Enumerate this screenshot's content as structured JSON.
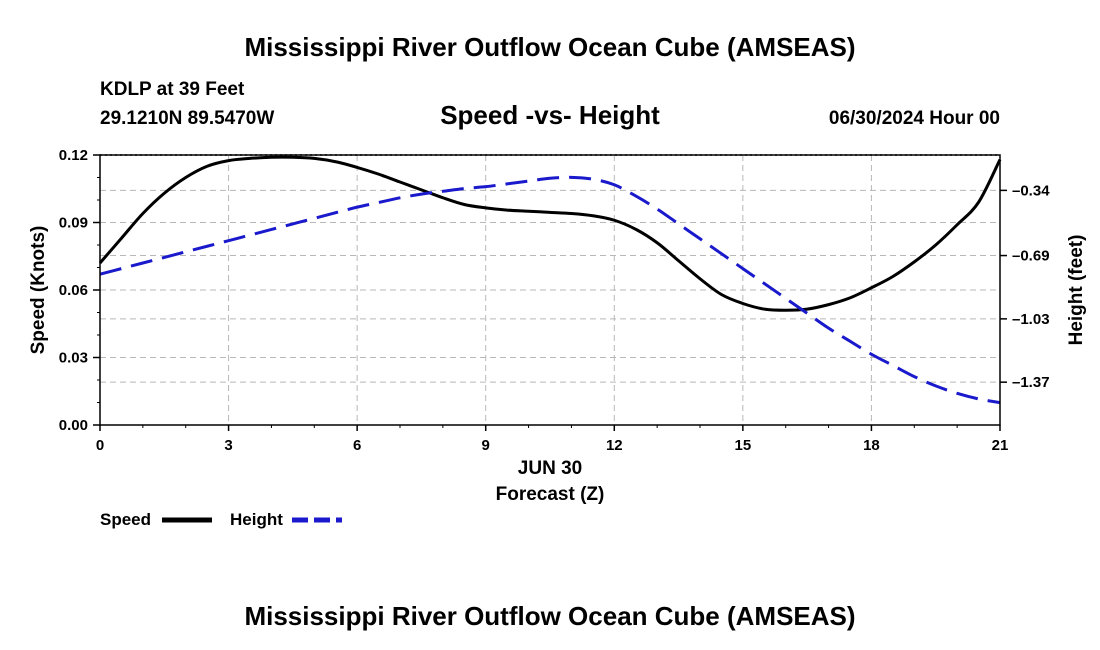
{
  "header": {
    "title": "Mississippi River Outflow Ocean Cube (AMSEAS)",
    "station": "KDLP at 39 Feet",
    "coords": "29.1210N  89.5470W",
    "date": "06/30/2024 Hour 00",
    "footer_title": "Mississippi River Outflow Ocean Cube (AMSEAS)"
  },
  "chart_data": {
    "type": "line",
    "title": "Speed -vs- Height",
    "xlabel": "Forecast (Z)",
    "xlabel_date": "JUN 30",
    "ylabel_left": "Speed (Knots)",
    "ylabel_right": "Height (feet)",
    "xlim": [
      0,
      21
    ],
    "ylim_left": [
      0,
      0.12
    ],
    "ylim_right": [
      -1.6,
      -0.15
    ],
    "x_ticks": [
      0,
      3,
      6,
      9,
      12,
      15,
      18,
      21
    ],
    "x_tick_labels": [
      "0",
      "3",
      "6",
      "9",
      "12",
      "15",
      "18",
      "21"
    ],
    "y_left_ticks": [
      0,
      0.03,
      0.06,
      0.09,
      0.12
    ],
    "y_left_tick_labels": [
      "0.00",
      "0.03",
      "0.06",
      "0.09",
      "0.12"
    ],
    "y_right_ticks": [
      -0.34,
      -0.69,
      -1.03,
      -1.37
    ],
    "y_right_tick_labels": [
      "–0.34",
      "–0.69",
      "–1.03",
      "–1.37"
    ],
    "grid": true,
    "series": [
      {
        "name": "Speed",
        "axis": "left",
        "color": "#000000",
        "dash": "solid",
        "x": [
          0,
          0.5,
          1,
          1.5,
          2,
          2.5,
          3,
          3.5,
          4,
          4.5,
          5,
          5.5,
          6,
          6.5,
          7,
          7.5,
          8,
          8.5,
          9,
          9.5,
          10,
          10.5,
          11,
          11.5,
          12,
          12.5,
          13,
          13.5,
          14,
          14.5,
          15,
          15.5,
          16,
          16.5,
          17,
          17.5,
          18,
          18.5,
          19,
          19.5,
          20,
          20.5,
          21
        ],
        "values": [
          0.072,
          0.083,
          0.094,
          0.103,
          0.11,
          0.115,
          0.1175,
          0.1185,
          0.119,
          0.119,
          0.1185,
          0.117,
          0.1145,
          0.1115,
          0.108,
          0.1045,
          0.101,
          0.098,
          0.0965,
          0.0955,
          0.095,
          0.0945,
          0.094,
          0.093,
          0.091,
          0.087,
          0.081,
          0.073,
          0.065,
          0.058,
          0.054,
          0.0515,
          0.051,
          0.0515,
          0.0535,
          0.0565,
          0.061,
          0.066,
          0.0725,
          0.08,
          0.089,
          0.099,
          0.118
        ]
      },
      {
        "name": "Height",
        "axis": "right",
        "color": "#1a1acc",
        "dash": "dashed",
        "x": [
          0,
          0.5,
          1,
          1.5,
          2,
          2.5,
          3,
          3.5,
          4,
          4.5,
          5,
          5.5,
          6,
          6.5,
          7,
          7.5,
          8,
          8.5,
          9,
          9.5,
          10,
          10.5,
          11,
          11.5,
          12,
          12.5,
          13,
          13.5,
          14,
          14.5,
          15,
          15.5,
          16,
          16.5,
          17,
          17.5,
          18,
          18.5,
          19,
          19.5,
          20,
          20.5,
          21
        ],
        "values": [
          -0.79,
          -0.76,
          -0.73,
          -0.7,
          -0.67,
          -0.64,
          -0.61,
          -0.58,
          -0.55,
          -0.52,
          -0.49,
          -0.46,
          -0.43,
          -0.405,
          -0.38,
          -0.36,
          -0.345,
          -0.33,
          -0.32,
          -0.305,
          -0.29,
          -0.275,
          -0.27,
          -0.28,
          -0.31,
          -0.37,
          -0.44,
          -0.52,
          -0.6,
          -0.68,
          -0.76,
          -0.84,
          -0.92,
          -1.0,
          -1.08,
          -1.15,
          -1.22,
          -1.28,
          -1.34,
          -1.39,
          -1.43,
          -1.46,
          -1.48
        ]
      }
    ],
    "legend": {
      "placement": "bottom-left",
      "entries": [
        {
          "label": "Speed",
          "color": "#000000",
          "dash": "solid"
        },
        {
          "label": "Height",
          "color": "#1a1acc",
          "dash": "dashed"
        }
      ]
    }
  }
}
